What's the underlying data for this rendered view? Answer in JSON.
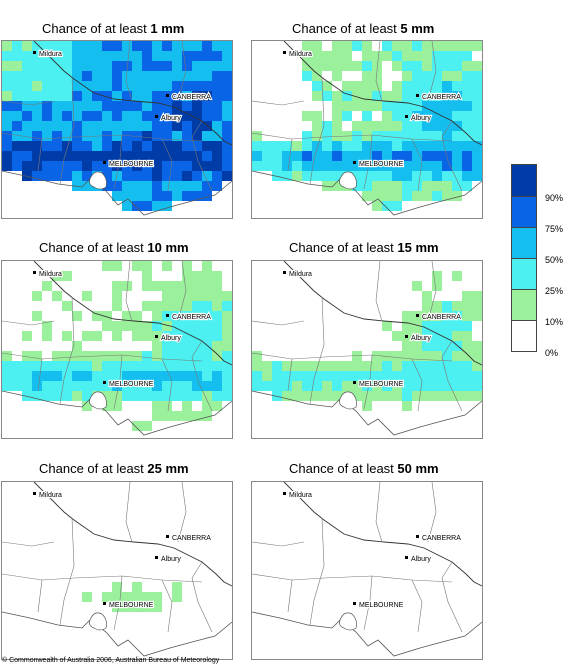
{
  "panels": [
    {
      "prefix": "Chance of at least ",
      "amount": "1 mm",
      "level": 1
    },
    {
      "prefix": "Chance of at least ",
      "amount": "5 mm",
      "level": 2
    },
    {
      "prefix": "Chance of at least ",
      "amount": "10 mm",
      "level": 3
    },
    {
      "prefix": "Chance of at least ",
      "amount": "15 mm",
      "level": 4
    },
    {
      "prefix": "Chance of at least ",
      "amount": "25 mm",
      "level": 5
    },
    {
      "prefix": "Chance of at least ",
      "amount": "50 mm",
      "level": 6
    }
  ],
  "places": {
    "mildura": "Mildura",
    "canberra": "CANBERRA",
    "albury": "Albury",
    "melbourne": "MELBOURNE"
  },
  "legend": {
    "labels": [
      "90%",
      "75%",
      "50%",
      "25%",
      "10%",
      "0%"
    ],
    "colors": [
      "#003ca8",
      "#0a64e6",
      "#14bff0",
      "#4cf0f0",
      "#9bf09b",
      "#ffffff"
    ]
  },
  "copyright": "© Commonwealth of Australia 2006, Australian Bureau of Meteorology"
}
